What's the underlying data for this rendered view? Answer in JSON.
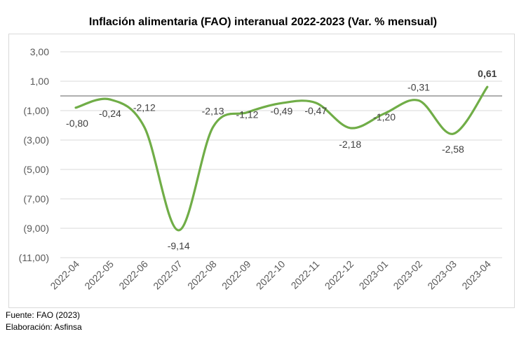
{
  "chart_data": {
    "type": "line",
    "title": "Inflación alimentaria (FAO) interanual 2022-2023 (Var. % mensual)",
    "xlabel": "",
    "ylabel": "",
    "ylim": [
      -11,
      3
    ],
    "grid": true,
    "legend": "none",
    "y_ticks": [
      "3,00",
      "1,00",
      "(1,00)",
      "(3,00)",
      "(5,00)",
      "(7,00)",
      "(9,00)",
      "(11,00)"
    ],
    "y_tick_values": [
      3,
      1,
      -1,
      -3,
      -5,
      -7,
      -9,
      -11
    ],
    "categories": [
      "2022-04",
      "2022-05",
      "2022-06",
      "2022-07",
      "2022-08",
      "2022-09",
      "2022-10",
      "2022-11",
      "2022-12",
      "2023-01",
      "2023-02",
      "2023-03",
      "2023-04"
    ],
    "series": [
      {
        "name": "Inflación alimentaria FAO",
        "values": [
          -0.8,
          -0.24,
          -2.12,
          -9.14,
          -2.13,
          -1.12,
          -0.49,
          -0.47,
          -2.18,
          -1.2,
          -0.31,
          -2.58,
          0.61
        ],
        "labels": [
          "-0,80",
          "-0,24",
          "-2,12",
          "-9,14",
          "-2,13",
          "-1,12",
          "-0,49",
          "-0,47",
          "-2,18",
          "-1,20",
          "-0,31",
          "-2,58",
          "0,61"
        ],
        "color": "#70ad47"
      }
    ]
  },
  "footer": {
    "source": "Fuente: FAO (2023)",
    "credit": "Elaboración: Asfinsa"
  }
}
